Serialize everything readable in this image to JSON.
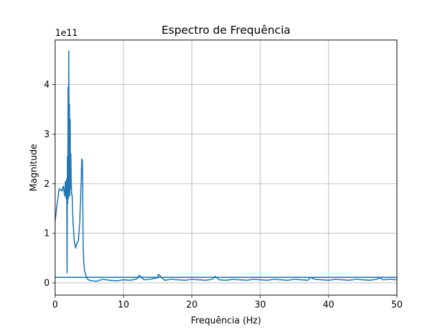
{
  "chart_data": {
    "type": "line",
    "title": "Espectro de Frequência",
    "xlabel": "Frequência (Hz)",
    "ylabel": "Magnitude",
    "offset_text": "1e11",
    "xlim": [
      0,
      50
    ],
    "ylim": [
      -0.25,
      4.9
    ],
    "y_scale_multiplier": 100000000000.0,
    "grid": true,
    "x_ticks": [
      0,
      10,
      20,
      30,
      40,
      50
    ],
    "y_ticks": [
      0,
      1,
      2,
      3,
      4
    ],
    "line_color": "#1f77b4",
    "series": [
      {
        "name": "",
        "x": [
          0,
          0.3,
          0.6,
          0.8,
          1.0,
          1.2,
          1.4,
          1.5,
          1.6,
          1.7,
          1.75,
          1.8,
          1.85,
          1.9,
          1.95,
          2.0,
          2.05,
          2.1,
          2.15,
          2.2,
          2.25,
          2.3,
          2.35,
          2.4,
          2.5,
          2.6,
          2.8,
          3.0,
          3.2,
          3.4,
          3.6,
          3.8,
          3.9,
          4.0,
          4.05,
          4.1,
          4.2,
          4.3,
          4.5,
          4.7,
          5.0,
          5.5,
          6.0,
          7.0,
          8.0,
          9.0,
          10.0,
          11.0,
          12.0,
          12.3,
          13.0,
          14.0,
          15.0,
          15.1,
          16.0,
          17.0,
          18.0,
          19.0,
          20.0,
          21.0,
          22.0,
          23.0,
          23.4,
          24.0,
          25.0,
          26.0,
          27.0,
          28.0,
          29.0,
          30.0,
          31.0,
          32.0,
          33.0,
          34.0,
          35.0,
          36.0,
          37.0,
          37.3,
          38.0,
          39.0,
          40.0,
          41.0,
          42.0,
          43.0,
          44.0,
          45.0,
          46.0,
          47.0,
          47.5,
          48.0,
          49.0,
          50.0
        ],
        "values": [
          1.25,
          1.6,
          1.9,
          1.88,
          1.85,
          1.95,
          1.75,
          2.05,
          1.7,
          2.1,
          0.2,
          2.55,
          1.6,
          3.95,
          1.7,
          4.68,
          1.8,
          3.6,
          1.75,
          3.3,
          1.9,
          2.6,
          2.1,
          1.8,
          1.75,
          1.25,
          0.85,
          0.7,
          0.8,
          0.85,
          1.2,
          2.0,
          2.5,
          2.45,
          1.6,
          0.7,
          0.4,
          0.25,
          0.15,
          0.08,
          0.05,
          0.04,
          0.03,
          0.07,
          0.05,
          0.04,
          0.06,
          0.05,
          0.08,
          0.15,
          0.06,
          0.07,
          0.1,
          0.17,
          0.05,
          0.07,
          0.06,
          0.05,
          0.07,
          0.06,
          0.05,
          0.07,
          0.13,
          0.06,
          0.05,
          0.07,
          0.06,
          0.05,
          0.07,
          0.06,
          0.05,
          0.07,
          0.06,
          0.05,
          0.07,
          0.06,
          0.05,
          0.11,
          0.07,
          0.06,
          0.05,
          0.07,
          0.06,
          0.05,
          0.07,
          0.06,
          0.05,
          0.07,
          0.1,
          0.06,
          0.07,
          0.06
        ]
      },
      {
        "name": "",
        "x": [
          0,
          50
        ],
        "values": [
          0.11,
          0.11
        ]
      }
    ]
  }
}
